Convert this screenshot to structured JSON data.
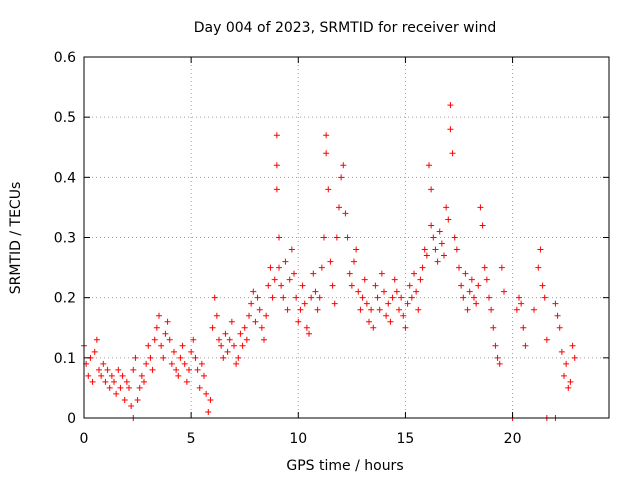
{
  "chart_data": {
    "type": "scatter",
    "title": "Day 004 of 2023, SRMTID for receiver wind",
    "xlabel": "GPS time / hours",
    "ylabel": "SRMTID / TECUs",
    "xlim": [
      0,
      24.5
    ],
    "ylim": [
      0,
      0.6
    ],
    "xticks": [
      0,
      5,
      10,
      15,
      20
    ],
    "xtick_labels": [
      "0",
      "5",
      "10",
      "15",
      "20"
    ],
    "yticks": [
      0,
      0.1,
      0.2,
      0.3,
      0.4,
      0.5,
      0.6
    ],
    "ytick_labels": [
      "0",
      "0.1",
      "0.2",
      "0.3",
      "0.4",
      "0.5",
      "0.6"
    ],
    "grid": true,
    "marker": "plus",
    "color": "#ff0000",
    "series": [
      {
        "name": "SRMTID",
        "x": [
          0.0,
          0.1,
          0.2,
          0.3,
          0.4,
          0.5,
          0.6,
          0.7,
          0.8,
          0.9,
          1.0,
          1.1,
          1.2,
          1.3,
          1.4,
          1.5,
          1.6,
          1.7,
          1.8,
          1.9,
          2.0,
          2.1,
          2.2,
          2.3,
          2.4,
          2.5,
          2.6,
          2.7,
          2.8,
          2.9,
          3.0,
          3.1,
          3.2,
          3.3,
          3.4,
          3.5,
          3.6,
          3.7,
          3.8,
          3.9,
          4.0,
          4.1,
          4.2,
          4.3,
          4.4,
          4.5,
          4.6,
          4.7,
          4.8,
          4.9,
          5.0,
          5.1,
          5.2,
          5.3,
          5.4,
          5.5,
          5.6,
          5.7,
          5.8,
          5.9,
          6.0,
          6.1,
          6.2,
          6.3,
          6.4,
          6.5,
          6.6,
          6.7,
          6.8,
          6.9,
          7.0,
          7.1,
          7.2,
          7.3,
          7.4,
          7.5,
          7.6,
          7.7,
          7.8,
          7.9,
          8.0,
          8.1,
          8.2,
          8.3,
          8.4,
          8.5,
          8.6,
          8.7,
          8.8,
          8.9,
          9.0,
          9.0,
          9.0,
          9.1,
          9.1,
          9.2,
          9.3,
          9.4,
          9.5,
          9.6,
          9.7,
          9.8,
          9.9,
          10.0,
          10.1,
          10.2,
          10.3,
          10.4,
          10.5,
          10.6,
          10.7,
          10.8,
          10.9,
          11.0,
          11.1,
          11.2,
          11.3,
          11.3,
          11.4,
          11.5,
          11.6,
          11.7,
          11.8,
          11.9,
          12.0,
          12.1,
          12.2,
          12.3,
          12.4,
          12.5,
          12.6,
          12.7,
          12.8,
          12.9,
          13.0,
          13.1,
          13.2,
          13.3,
          13.4,
          13.5,
          13.6,
          13.7,
          13.8,
          13.9,
          14.0,
          14.1,
          14.2,
          14.3,
          14.4,
          14.5,
          14.6,
          14.7,
          14.8,
          14.9,
          15.0,
          15.1,
          15.2,
          15.3,
          15.4,
          15.5,
          15.6,
          15.7,
          15.8,
          15.9,
          16.0,
          16.1,
          16.2,
          16.2,
          16.3,
          16.4,
          16.5,
          16.6,
          16.7,
          16.8,
          16.9,
          17.0,
          17.1,
          17.1,
          17.2,
          17.3,
          17.4,
          17.5,
          17.6,
          17.7,
          17.8,
          17.9,
          18.0,
          18.1,
          18.2,
          18.3,
          18.4,
          18.5,
          18.6,
          18.7,
          18.8,
          18.9,
          19.0,
          19.1,
          19.2,
          19.3,
          19.4,
          19.5,
          19.6,
          20.2,
          20.3,
          20.4,
          20.5,
          20.6,
          21.0,
          21.2,
          21.3,
          21.4,
          21.5,
          21.6,
          22.0,
          22.1,
          22.2,
          22.3,
          22.4,
          22.5,
          22.6,
          22.7,
          22.8,
          22.9,
          2.3,
          20.0,
          21.6,
          22.0
        ],
        "y": [
          0.12,
          0.09,
          0.07,
          0.1,
          0.06,
          0.11,
          0.13,
          0.08,
          0.07,
          0.09,
          0.06,
          0.08,
          0.05,
          0.07,
          0.06,
          0.04,
          0.08,
          0.05,
          0.07,
          0.03,
          0.06,
          0.05,
          0.02,
          0.08,
          0.1,
          0.03,
          0.05,
          0.07,
          0.06,
          0.09,
          0.12,
          0.1,
          0.08,
          0.13,
          0.15,
          0.17,
          0.12,
          0.1,
          0.14,
          0.16,
          0.13,
          0.09,
          0.11,
          0.08,
          0.07,
          0.1,
          0.12,
          0.09,
          0.06,
          0.08,
          0.11,
          0.13,
          0.1,
          0.08,
          0.05,
          0.09,
          0.07,
          0.04,
          0.01,
          0.03,
          0.15,
          0.2,
          0.17,
          0.13,
          0.12,
          0.1,
          0.14,
          0.11,
          0.13,
          0.16,
          0.12,
          0.09,
          0.1,
          0.14,
          0.12,
          0.15,
          0.13,
          0.17,
          0.19,
          0.21,
          0.16,
          0.2,
          0.18,
          0.15,
          0.13,
          0.17,
          0.22,
          0.25,
          0.2,
          0.23,
          0.47,
          0.42,
          0.38,
          0.3,
          0.25,
          0.22,
          0.2,
          0.26,
          0.18,
          0.23,
          0.28,
          0.24,
          0.2,
          0.16,
          0.18,
          0.22,
          0.19,
          0.15,
          0.14,
          0.2,
          0.24,
          0.21,
          0.18,
          0.2,
          0.25,
          0.3,
          0.47,
          0.44,
          0.38,
          0.26,
          0.22,
          0.19,
          0.3,
          0.35,
          0.4,
          0.42,
          0.34,
          0.3,
          0.24,
          0.22,
          0.26,
          0.28,
          0.21,
          0.18,
          0.2,
          0.23,
          0.19,
          0.16,
          0.18,
          0.15,
          0.22,
          0.2,
          0.18,
          0.24,
          0.21,
          0.17,
          0.19,
          0.16,
          0.2,
          0.23,
          0.21,
          0.18,
          0.2,
          0.17,
          0.15,
          0.19,
          0.22,
          0.2,
          0.24,
          0.21,
          0.18,
          0.23,
          0.25,
          0.28,
          0.27,
          0.42,
          0.38,
          0.32,
          0.3,
          0.28,
          0.26,
          0.31,
          0.29,
          0.27,
          0.35,
          0.33,
          0.52,
          0.48,
          0.44,
          0.3,
          0.28,
          0.25,
          0.22,
          0.2,
          0.24,
          0.18,
          0.21,
          0.23,
          0.2,
          0.19,
          0.22,
          0.35,
          0.32,
          0.25,
          0.23,
          0.2,
          0.18,
          0.15,
          0.12,
          0.1,
          0.09,
          0.25,
          0.21,
          0.18,
          0.2,
          0.19,
          0.15,
          0.12,
          0.18,
          0.25,
          0.28,
          0.22,
          0.2,
          0.13,
          0.19,
          0.17,
          0.15,
          0.11,
          0.07,
          0.09,
          0.05,
          0.06,
          0.12,
          0.1,
          0.0,
          0.0,
          0.0,
          0.0
        ]
      }
    ]
  }
}
